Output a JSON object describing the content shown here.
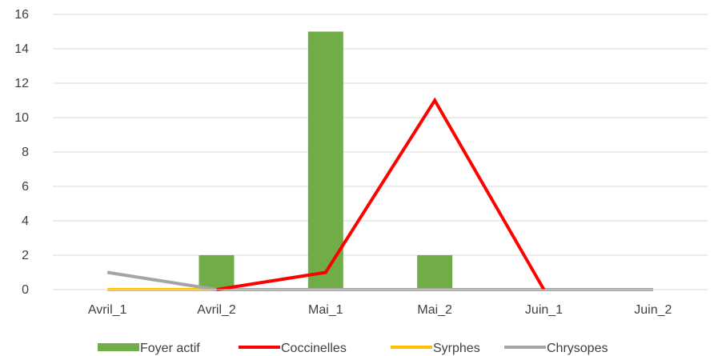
{
  "chart_data": {
    "type": "bar",
    "categories": [
      "Avril_1",
      "Avril_2",
      "Mai_1",
      "Mai_2",
      "Juin_1",
      "Juin_2"
    ],
    "ylim": [
      0,
      16
    ],
    "yticks": [
      0,
      2,
      4,
      6,
      8,
      10,
      12,
      14,
      16
    ],
    "grid": true,
    "legend_position": "bottom",
    "series": [
      {
        "name": "Foyer actif",
        "kind": "bar",
        "color": "#70ad47",
        "values": [
          0,
          2,
          15,
          2,
          0,
          0
        ]
      },
      {
        "name": "Coccinelles",
        "kind": "line",
        "color": "#ff0000",
        "values": [
          null,
          0,
          1,
          11,
          0,
          null
        ]
      },
      {
        "name": "Syrphes",
        "kind": "line",
        "color": "#ffc000",
        "values": [
          0,
          0,
          0,
          0,
          0,
          0
        ]
      },
      {
        "name": "Chrysopes",
        "kind": "line",
        "color": "#a5a5a5",
        "values": [
          1,
          0,
          0,
          0,
          0,
          0
        ]
      }
    ]
  }
}
